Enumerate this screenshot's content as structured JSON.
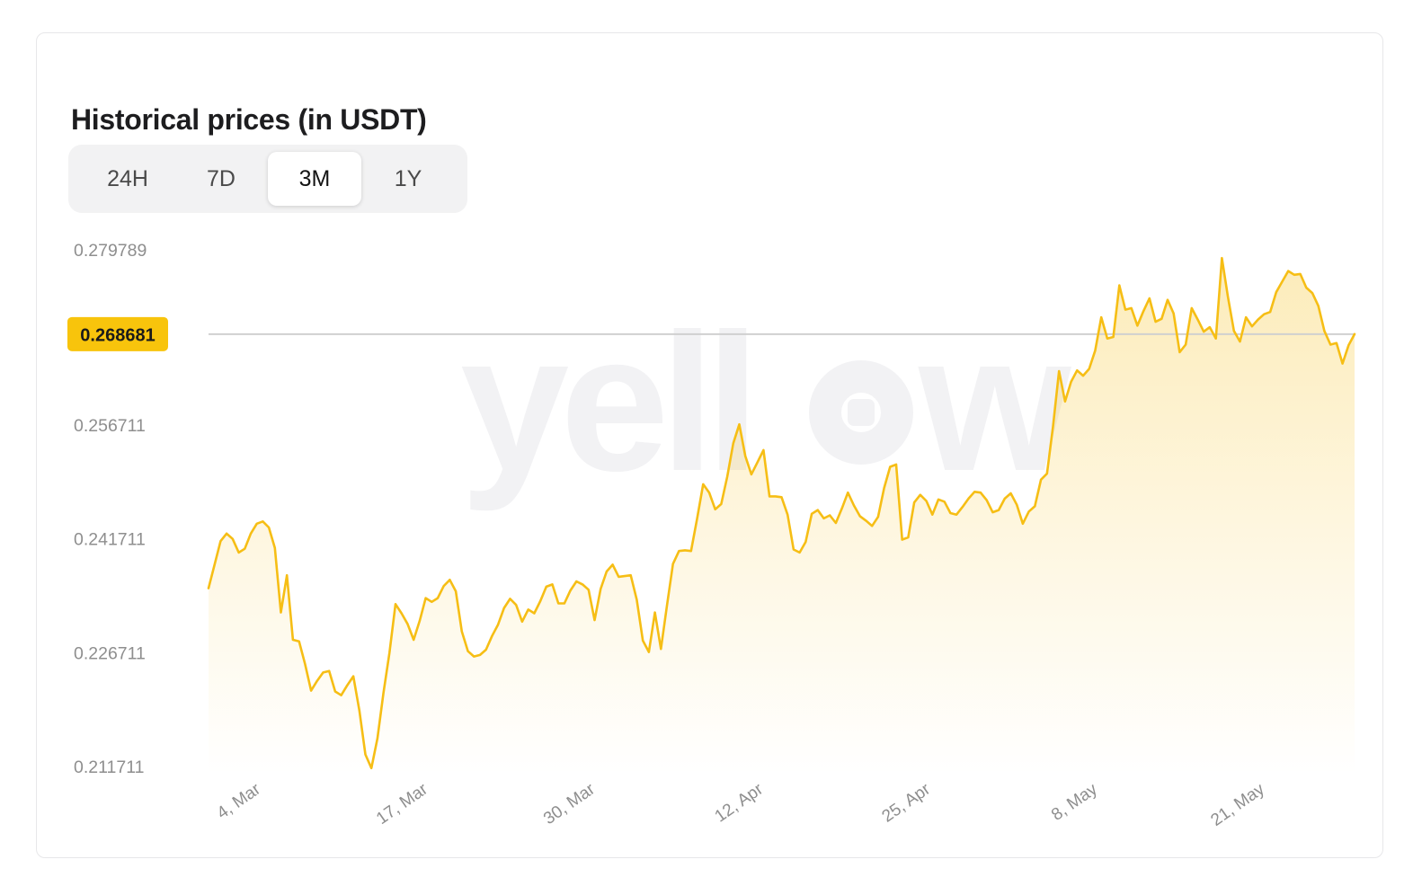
{
  "header": {
    "title": "Historical prices (in USDT)"
  },
  "tabs": {
    "items": [
      {
        "label": "24H",
        "active": false
      },
      {
        "label": "7D",
        "active": false
      },
      {
        "label": "3M",
        "active": true
      },
      {
        "label": "1Y",
        "active": false
      }
    ]
  },
  "watermark": {
    "text": "yellow"
  },
  "chart_data": {
    "type": "area",
    "title": "Historical prices (in USDT)",
    "unit": "USDT",
    "selected_range": "3M",
    "current_price": "0.268681",
    "legend": "none",
    "grid": "single horizontal gridline at current price",
    "ylim": [
      0.211711,
      0.279789
    ],
    "y_ticks": [
      {
        "label": "0.279789",
        "value": 0.279789,
        "highlight": false
      },
      {
        "label": "0.268681",
        "value": 0.268681,
        "highlight": true
      },
      {
        "label": "0.256711",
        "value": 0.256711,
        "highlight": false
      },
      {
        "label": "0.241711",
        "value": 0.241711,
        "highlight": false
      },
      {
        "label": "0.226711",
        "value": 0.226711,
        "highlight": false
      },
      {
        "label": "0.211711",
        "value": 0.211711,
        "highlight": false
      }
    ],
    "x_ticks": [
      {
        "label": "4, Mar",
        "pos": 0.0227
      },
      {
        "label": "17, Mar",
        "pos": 0.1686
      },
      {
        "label": "30, Mar",
        "pos": 0.3145
      },
      {
        "label": "12, Apr",
        "pos": 0.4612
      },
      {
        "label": "25, Apr",
        "pos": 0.6071
      },
      {
        "label": "8, May",
        "pos": 0.7529
      },
      {
        "label": "21, May",
        "pos": 0.8988
      }
    ],
    "prices": [
      0.2352,
      0.2383,
      0.2414,
      0.2424,
      0.2417,
      0.2399,
      0.2404,
      0.2424,
      0.2437,
      0.244,
      0.2432,
      0.2405,
      0.232,
      0.2369,
      0.2284,
      0.2282,
      0.2252,
      0.2217,
      0.223,
      0.2241,
      0.2243,
      0.2216,
      0.2211,
      0.2224,
      0.2236,
      0.2191,
      0.2133,
      0.2115,
      0.2154,
      0.2214,
      0.2267,
      0.2331,
      0.2319,
      0.2305,
      0.2284,
      0.2309,
      0.2339,
      0.2334,
      0.2339,
      0.2355,
      0.2363,
      0.2348,
      0.2295,
      0.2269,
      0.2262,
      0.2264,
      0.2271,
      0.2289,
      0.2304,
      0.2326,
      0.2338,
      0.233,
      0.2308,
      0.2324,
      0.2319,
      0.2335,
      0.2354,
      0.2357,
      0.2332,
      0.2332,
      0.2349,
      0.2361,
      0.2357,
      0.235,
      0.231,
      0.2351,
      0.2374,
      0.2383,
      0.2367,
      0.2368,
      0.2369,
      0.2337,
      0.2283,
      0.2268,
      0.232,
      0.2272,
      0.2329,
      0.2384,
      0.2401,
      0.2402,
      0.2401,
      0.2444,
      0.2489,
      0.2478,
      0.2456,
      0.2463,
      0.2499,
      0.2543,
      0.2568,
      0.2526,
      0.2502,
      0.2518,
      0.2534,
      0.2473,
      0.2473,
      0.2472,
      0.2449,
      0.2403,
      0.2399,
      0.2413,
      0.245,
      0.2455,
      0.2444,
      0.2448,
      0.2438,
      0.2457,
      0.2478,
      0.2461,
      0.2447,
      0.2441,
      0.2434,
      0.2446,
      0.2484,
      0.2512,
      0.2515,
      0.2416,
      0.2419,
      0.2465,
      0.2475,
      0.2467,
      0.2449,
      0.2469,
      0.2466,
      0.2451,
      0.2449,
      0.2459,
      0.247,
      0.2479,
      0.2478,
      0.2468,
      0.2452,
      0.2455,
      0.247,
      0.2477,
      0.2462,
      0.2437,
      0.2453,
      0.246,
      0.2495,
      0.2503,
      0.2565,
      0.2638,
      0.2598,
      0.2624,
      0.2639,
      0.2632,
      0.2641,
      0.2665,
      0.2709,
      0.2681,
      0.2683,
      0.2751,
      0.2719,
      0.2721,
      0.2698,
      0.2717,
      0.2734,
      0.2703,
      0.2707,
      0.2732,
      0.2714,
      0.2663,
      0.2673,
      0.2721,
      0.2706,
      0.269,
      0.2696,
      0.2681,
      0.2787,
      0.2736,
      0.2691,
      0.2677,
      0.2709,
      0.2697,
      0.2706,
      0.2713,
      0.2716,
      0.2742,
      0.2756,
      0.277,
      0.2765,
      0.2766,
      0.2748,
      0.2741,
      0.2724,
      0.2691,
      0.2673,
      0.2675,
      0.2648,
      0.2672,
      0.268681
    ],
    "colors": {
      "line": "#F6BE15",
      "area_top": "rgba(246,190,21,0.30)",
      "area_mid": "rgba(246,190,21,0.13)",
      "area_bottom": "rgba(246,190,21,0)",
      "badge_bg": "#F8C40C",
      "badge_text": "#1A1A1A",
      "axis_text": "#8E8E8E",
      "gridline": "#D0D0D0",
      "watermark": "#F2F2F4"
    }
  }
}
